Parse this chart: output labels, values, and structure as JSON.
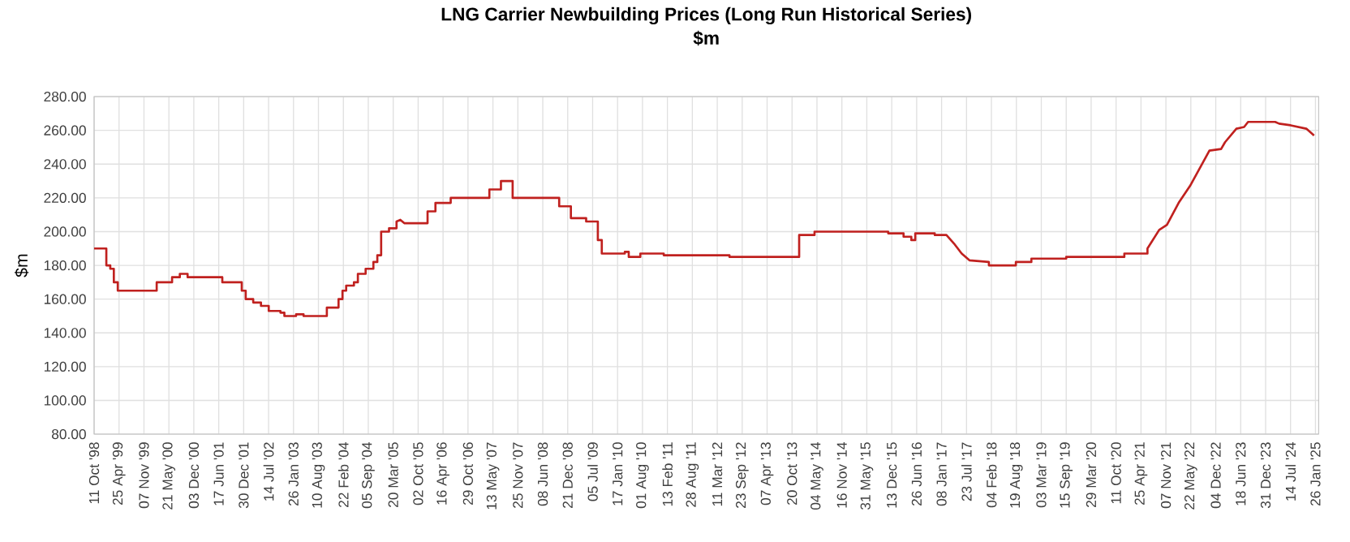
{
  "chart_data": {
    "type": "line",
    "title": "LNG Carrier Newbuilding Prices (Long Run Historical Series)",
    "subtitle": "$m",
    "ylabel": "$m",
    "grid": true,
    "xlim": [
      "1998-10-11",
      "2025-02-20"
    ],
    "ylim": [
      80,
      280
    ],
    "yticks": [
      {
        "value": 80,
        "label": "80.00"
      },
      {
        "value": 100,
        "label": "100.00"
      },
      {
        "value": 120,
        "label": "120.00"
      },
      {
        "value": 140,
        "label": "140.00"
      },
      {
        "value": 160,
        "label": "160.00"
      },
      {
        "value": 180,
        "label": "180.00"
      },
      {
        "value": 200,
        "label": "200.00"
      },
      {
        "value": 220,
        "label": "220.00"
      },
      {
        "value": 240,
        "label": "240.00"
      },
      {
        "value": 260,
        "label": "260.00"
      },
      {
        "value": 280,
        "label": "280.00"
      }
    ],
    "xticks": [
      {
        "value": "1998-10-11",
        "label": "11 Oct '98"
      },
      {
        "value": "1999-04-25",
        "label": "25 Apr '99"
      },
      {
        "value": "1999-11-07",
        "label": "07 Nov '99"
      },
      {
        "value": "2000-05-21",
        "label": "21 May '00"
      },
      {
        "value": "2000-12-03",
        "label": "03 Dec '00"
      },
      {
        "value": "2001-06-17",
        "label": "17 Jun '01"
      },
      {
        "value": "2001-12-30",
        "label": "30 Dec '01"
      },
      {
        "value": "2002-07-14",
        "label": "14 Jul '02"
      },
      {
        "value": "2003-01-26",
        "label": "26 Jan '03"
      },
      {
        "value": "2003-08-10",
        "label": "10 Aug '03"
      },
      {
        "value": "2004-02-22",
        "label": "22 Feb '04"
      },
      {
        "value": "2004-09-05",
        "label": "05 Sep '04"
      },
      {
        "value": "2005-03-20",
        "label": "20 Mar '05"
      },
      {
        "value": "2005-10-02",
        "label": "02 Oct '05"
      },
      {
        "value": "2006-04-16",
        "label": "16 Apr '06"
      },
      {
        "value": "2006-10-29",
        "label": "29 Oct '06"
      },
      {
        "value": "2007-05-13",
        "label": "13 May '07"
      },
      {
        "value": "2007-11-25",
        "label": "25 Nov '07"
      },
      {
        "value": "2008-06-08",
        "label": "08 Jun '08"
      },
      {
        "value": "2008-12-21",
        "label": "21 Dec '08"
      },
      {
        "value": "2009-07-05",
        "label": "05 Jul '09"
      },
      {
        "value": "2010-01-17",
        "label": "17 Jan '10"
      },
      {
        "value": "2010-08-01",
        "label": "01 Aug '10"
      },
      {
        "value": "2011-02-13",
        "label": "13 Feb '11"
      },
      {
        "value": "2011-08-28",
        "label": "28 Aug '11"
      },
      {
        "value": "2012-03-11",
        "label": "11 Mar '12"
      },
      {
        "value": "2012-09-23",
        "label": "23 Sep '12"
      },
      {
        "value": "2013-04-07",
        "label": "07 Apr '13"
      },
      {
        "value": "2013-10-20",
        "label": "20 Oct '13"
      },
      {
        "value": "2014-05-04",
        "label": "04 May '14"
      },
      {
        "value": "2014-11-16",
        "label": "16 Nov '14"
      },
      {
        "value": "2015-05-31",
        "label": "31 May '15"
      },
      {
        "value": "2015-12-13",
        "label": "13 Dec '15"
      },
      {
        "value": "2016-06-26",
        "label": "26 Jun '16"
      },
      {
        "value": "2017-01-08",
        "label": "08 Jan '17"
      },
      {
        "value": "2017-07-23",
        "label": "23 Jul '17"
      },
      {
        "value": "2018-02-04",
        "label": "04 Feb '18"
      },
      {
        "value": "2018-08-19",
        "label": "19 Aug '18"
      },
      {
        "value": "2019-03-03",
        "label": "03 Mar '19"
      },
      {
        "value": "2019-09-15",
        "label": "15 Sep '19"
      },
      {
        "value": "2020-03-29",
        "label": "29 Mar '20"
      },
      {
        "value": "2020-10-11",
        "label": "11 Oct '20"
      },
      {
        "value": "2021-04-25",
        "label": "25 Apr '21"
      },
      {
        "value": "2021-11-07",
        "label": "07 Nov '21"
      },
      {
        "value": "2022-05-22",
        "label": "22 May '22"
      },
      {
        "value": "2022-12-04",
        "label": "04 Dec '22"
      },
      {
        "value": "2023-06-18",
        "label": "18 Jun '23"
      },
      {
        "value": "2023-12-31",
        "label": "31 Dec '23"
      },
      {
        "value": "2024-07-14",
        "label": "14 Jul '24"
      },
      {
        "value": "2025-01-26",
        "label": "26 Jan '25"
      }
    ],
    "series": [
      {
        "color": "#c0211f",
        "x": [
          "1998-10-11",
          "1999-01",
          "1999-01",
          "1999-02",
          "1999-02",
          "1999-03",
          "1999-03",
          "1999-04",
          "1999-04",
          "2000-02",
          "2000-02",
          "2000-06",
          "2000-06",
          "2000-08",
          "2000-08",
          "2000-10",
          "2000-10",
          "2001-07",
          "2001-07",
          "2001-12",
          "2001-12",
          "2002-01",
          "2002-01",
          "2002-03",
          "2002-03",
          "2002-05",
          "2002-05",
          "2002-07",
          "2002-07",
          "2002-10",
          "2002-10",
          "2002-11",
          "2002-11",
          "2003-02",
          "2003-02",
          "2003-04",
          "2003-04",
          "2003-10",
          "2003-10",
          "2004-01",
          "2004-01",
          "2004-02",
          "2004-02",
          "2004-03",
          "2004-03",
          "2004-05",
          "2004-05",
          "2004-06",
          "2004-06",
          "2004-08",
          "2004-08",
          "2004-10",
          "2004-10",
          "2004-11",
          "2004-11",
          "2004-12",
          "2004-12",
          "2005-02",
          "2005-02",
          "2005-04",
          "2005-04",
          "2005-05",
          "2005-06",
          "2005-12",
          "2005-12",
          "2006-02",
          "2006-02",
          "2006-06",
          "2006-06",
          "2007-04",
          "2007-04",
          "2007-07",
          "2007-07",
          "2007-10",
          "2007-10",
          "2008-10",
          "2008-10",
          "2009-01",
          "2009-01",
          "2009-05",
          "2009-05",
          "2009-08",
          "2009-08",
          "2009-09",
          "2009-09",
          "2010-03",
          "2010-03",
          "2010-04",
          "2010-04",
          "2010-07",
          "2010-07",
          "2011-01",
          "2011-01",
          "2012-06",
          "2012-06",
          "2013-12",
          "2013-12",
          "2014-04",
          "2014-04",
          "2015-11",
          "2015-11",
          "2016-03",
          "2016-03",
          "2016-05",
          "2016-05",
          "2016-06",
          "2016-06",
          "2016-11",
          "2016-11",
          "2017-02",
          "2017-04",
          "2017-06",
          "2017-08",
          "2018-01",
          "2018-01",
          "2018-08",
          "2018-08",
          "2018-12",
          "2018-12",
          "2019-09",
          "2019-09",
          "2020-12",
          "2020-12",
          "2021-06",
          "2021-06",
          "2021-09",
          "2021-11",
          "2022-02",
          "2022-05",
          "2022-10",
          "2023-01",
          "2023-02",
          "2023-05",
          "2023-07",
          "2023-08",
          "2024-03",
          "2024-04",
          "2024-07",
          "2024-11",
          "2025-01"
        ],
        "values": [
          190,
          190,
          180,
          180,
          178,
          178,
          170,
          170,
          165,
          165,
          170,
          170,
          173,
          173,
          175,
          175,
          173,
          173,
          170,
          170,
          165,
          165,
          160,
          160,
          158,
          158,
          156,
          156,
          153,
          153,
          152,
          152,
          150,
          150,
          151,
          151,
          150,
          150,
          155,
          155,
          160,
          160,
          165,
          165,
          168,
          168,
          170,
          170,
          175,
          175,
          178,
          178,
          182,
          182,
          186,
          186,
          200,
          200,
          202,
          202,
          206,
          207,
          205,
          205,
          212,
          212,
          217,
          217,
          220,
          220,
          225,
          225,
          230,
          230,
          220,
          220,
          215,
          215,
          208,
          208,
          206,
          206,
          195,
          195,
          187,
          187,
          188,
          188,
          185,
          185,
          187,
          187,
          186,
          186,
          185,
          185,
          198,
          198,
          200,
          200,
          199,
          199,
          197,
          197,
          195,
          195,
          199,
          199,
          198,
          198,
          193,
          187,
          183,
          182,
          180,
          180,
          182,
          182,
          184,
          184,
          185,
          185,
          187,
          187,
          190,
          201,
          204,
          217,
          227,
          248,
          249,
          253,
          261,
          262,
          265,
          265,
          264,
          263,
          261,
          257
        ]
      }
    ]
  }
}
